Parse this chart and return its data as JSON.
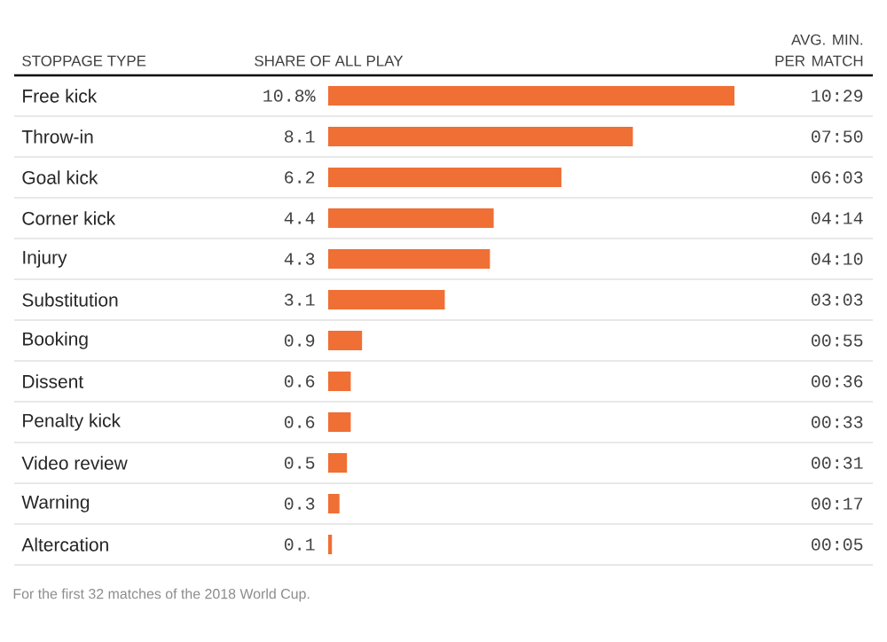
{
  "chart_data": {
    "type": "bar",
    "orientation": "horizontal",
    "ylabel": "STOPPAGE TYPE",
    "xlabel": "SHARE OF ALL PLAY",
    "tick_labels": "y",
    "color": "#ef6f35",
    "categories": [
      "Free kick",
      "Throw-in",
      "Goal kick",
      "Corner kick",
      "Injury",
      "Substitution",
      "Booking",
      "Dissent",
      "Penalty kick",
      "Video review",
      "Warning",
      "Altercation"
    ],
    "values": [
      10.8,
      8.1,
      6.2,
      4.4,
      4.3,
      3.1,
      0.9,
      0.6,
      0.6,
      0.5,
      0.3,
      0.1
    ],
    "value_labels": [
      "10.8%",
      "8.1",
      "6.2",
      "4.4",
      "4.3",
      "3.1",
      "0.9",
      "0.6",
      "0.6",
      "0.5",
      "0.3",
      "0.1"
    ],
    "annotations": [
      "AVG. MIN. PER MATCH",
      "10:29",
      "07:50",
      "06:03",
      "04:14",
      "04:10",
      "03:03",
      "00:55",
      "00:36",
      "00:33",
      "00:31",
      "00:17",
      "00:05",
      "For the first 32 matches of the 2018 World Cup."
    ]
  }
}
